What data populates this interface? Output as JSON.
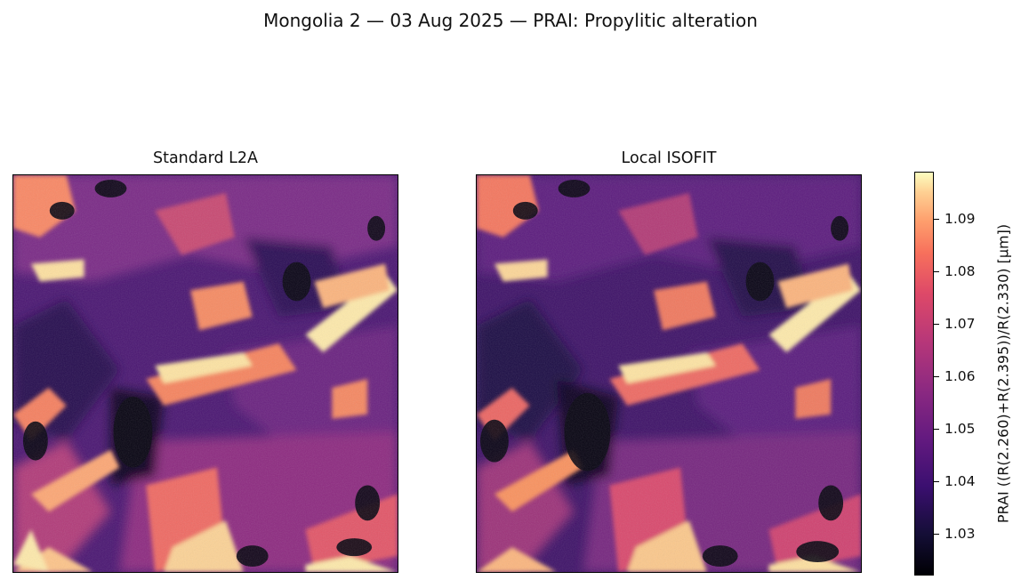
{
  "figure": {
    "title": "Mongolia 2 — 03 Aug 2025 — PRAI: Propylitic alteration"
  },
  "panels": [
    {
      "title": "Standard L2A"
    },
    {
      "title": "Local ISOFIT"
    }
  ],
  "colorbar": {
    "label": "PRAI  ((R(2.260)+R(2.395))/R(2.330)  [µm])",
    "colormap": "magma",
    "min": 1.022,
    "max": 1.099,
    "ticks": [
      "1.03",
      "1.04",
      "1.05",
      "1.06",
      "1.07",
      "1.08",
      "1.09"
    ]
  }
}
